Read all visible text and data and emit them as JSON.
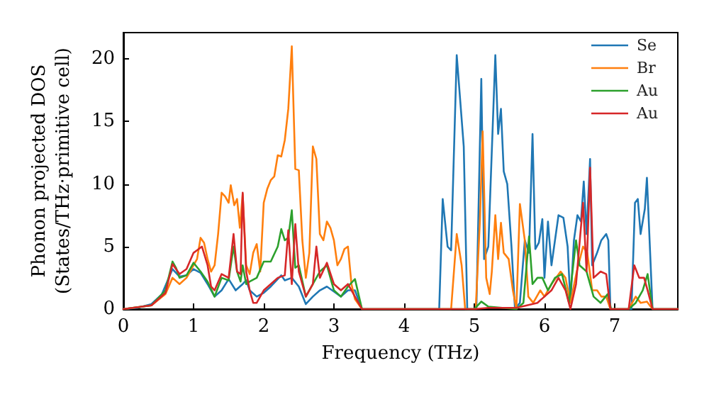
{
  "chart_data": {
    "type": "line",
    "xlabel": "Frequency (THz)",
    "ylabel": "Phonon projected DOS\n(States/THz·primitive cell)",
    "xlim": [
      0,
      7.9
    ],
    "ylim": [
      0,
      22.1
    ],
    "xticks": [
      0,
      1,
      2,
      3,
      4,
      5,
      6,
      7
    ],
    "yticks": [
      0,
      5,
      10,
      15,
      20
    ],
    "grid": false,
    "legend": "top right",
    "marker": "none",
    "line_style": "solid",
    "series": [
      {
        "name": "Se",
        "color": "#1f77b4",
        "x": [
          0,
          0.2,
          0.4,
          0.55,
          0.7,
          0.8,
          0.9,
          1.0,
          1.1,
          1.2,
          1.3,
          1.4,
          1.5,
          1.6,
          1.7,
          1.75,
          1.8,
          1.9,
          2.0,
          2.1,
          2.2,
          2.25,
          2.3,
          2.4,
          2.5,
          2.6,
          2.7,
          2.8,
          2.9,
          3.0,
          3.1,
          3.2,
          3.3,
          3.4,
          4.5,
          4.55,
          4.62,
          4.67,
          4.75,
          4.85,
          4.9,
          5.03,
          5.1,
          5.14,
          5.2,
          5.3,
          5.34,
          5.38,
          5.42,
          5.47,
          5.53,
          5.58,
          5.65,
          5.72,
          5.78,
          5.83,
          5.87,
          5.92,
          5.97,
          6.0,
          6.05,
          6.1,
          6.2,
          6.27,
          6.33,
          6.37,
          6.42,
          6.47,
          6.52,
          6.56,
          6.6,
          6.65,
          6.68,
          6.75,
          6.81,
          6.88,
          6.91,
          6.94,
          7.24,
          7.29,
          7.33,
          7.37,
          7.43,
          7.46,
          7.54,
          7.9
        ],
        "values": [
          0,
          0.1,
          0.4,
          1.2,
          3.2,
          2.6,
          2.7,
          3.2,
          2.9,
          2.0,
          1.0,
          1.5,
          2.4,
          1.5,
          2.0,
          2.3,
          1.5,
          1.0,
          1.3,
          1.8,
          2.4,
          2.7,
          2.3,
          2.5,
          1.8,
          0.4,
          1.0,
          1.5,
          1.8,
          1.4,
          1.0,
          1.5,
          1.5,
          0,
          0,
          8.8,
          5.0,
          4.7,
          20.3,
          13,
          0,
          0,
          18.4,
          4.0,
          5,
          20.3,
          14,
          16,
          11,
          10,
          5,
          0,
          0.5,
          5.5,
          4.5,
          14,
          4.8,
          5.3,
          7.2,
          2.5,
          7.0,
          3.5,
          7.5,
          7.3,
          5.0,
          0.5,
          5.5,
          7.5,
          7,
          10.2,
          6,
          12,
          3.5,
          4.5,
          5.5,
          6.0,
          5.5,
          0,
          0,
          8.5,
          8.8,
          6.0,
          8,
          10.5,
          0,
          0
        ]
      },
      {
        "name": "Br",
        "color": "#ff7f0e",
        "x": [
          0,
          0.4,
          0.6,
          0.7,
          0.8,
          0.9,
          1.0,
          1.05,
          1.1,
          1.15,
          1.2,
          1.25,
          1.3,
          1.35,
          1.4,
          1.45,
          1.5,
          1.53,
          1.58,
          1.62,
          1.66,
          1.7,
          1.75,
          1.8,
          1.85,
          1.9,
          1.95,
          2.0,
          2.05,
          2.1,
          2.15,
          2.2,
          2.25,
          2.3,
          2.35,
          2.4,
          2.45,
          2.5,
          2.55,
          2.6,
          2.65,
          2.7,
          2.75,
          2.8,
          2.85,
          2.9,
          2.95,
          3.0,
          3.05,
          3.1,
          3.15,
          3.2,
          3.25,
          3.3,
          3.4,
          4.67,
          4.75,
          4.82,
          4.87,
          5.02,
          5.08,
          5.12,
          5.17,
          5.22,
          5.25,
          5.3,
          5.34,
          5.38,
          5.42,
          5.49,
          5.55,
          5.6,
          5.65,
          5.72,
          5.77,
          5.84,
          5.94,
          6.0,
          6.1,
          6.23,
          6.3,
          6.37,
          6.46,
          6.55,
          6.61,
          6.68,
          6.75,
          6.81,
          6.88,
          6.94,
          7.2,
          7.3,
          7.37,
          7.46,
          7.54,
          7.9
        ],
        "values": [
          0,
          0.3,
          1.2,
          2.5,
          2.0,
          2.5,
          3.5,
          4.0,
          5.7,
          5.3,
          4.0,
          3.0,
          3.5,
          6.0,
          9.3,
          9.0,
          8.5,
          9.9,
          8.3,
          8.8,
          6.5,
          9.2,
          3.5,
          2.8,
          4.5,
          5.2,
          3.0,
          8.5,
          9.6,
          10.3,
          10.6,
          12.3,
          12.2,
          13.5,
          16,
          21.0,
          11.2,
          11.1,
          5.5,
          2.5,
          4.5,
          13.0,
          12.0,
          6.0,
          5.5,
          7.0,
          6.5,
          5.5,
          3.5,
          4.0,
          4.8,
          5.0,
          2.0,
          0.8,
          0,
          0,
          6.0,
          3.5,
          0,
          0,
          7,
          14.2,
          2.5,
          1.2,
          3,
          7.5,
          4,
          6.9,
          4.5,
          4,
          1.5,
          0,
          8.4,
          5.5,
          1.0,
          0.5,
          1.5,
          1.0,
          2.0,
          3.0,
          2.5,
          0.5,
          3.0,
          5.0,
          4.5,
          1.5,
          1.5,
          1.0,
          1.0,
          0,
          0,
          1.0,
          0.5,
          0.6,
          0,
          0
        ]
      },
      {
        "name": "Au",
        "color": "#2ca02c",
        "x": [
          0,
          0.4,
          0.6,
          0.7,
          0.75,
          0.8,
          0.9,
          1.0,
          1.1,
          1.2,
          1.3,
          1.4,
          1.5,
          1.57,
          1.62,
          1.67,
          1.7,
          1.75,
          1.8,
          1.9,
          2.0,
          2.1,
          2.2,
          2.25,
          2.3,
          2.35,
          2.4,
          2.45,
          2.5,
          2.6,
          2.7,
          2.8,
          2.9,
          3.0,
          3.1,
          3.2,
          3.3,
          3.4,
          5.0,
          5.1,
          5.2,
          5.4,
          5.6,
          5.7,
          5.78,
          5.83,
          5.9,
          5.97,
          6.05,
          6.15,
          6.25,
          6.35,
          6.45,
          6.5,
          6.6,
          6.7,
          6.8,
          6.9,
          6.95,
          7.2,
          7.3,
          7.4,
          7.47,
          7.54,
          7.9
        ],
        "values": [
          0,
          0.3,
          1.5,
          3.8,
          3.3,
          2.5,
          2.7,
          3.7,
          3.0,
          2.2,
          1.0,
          2.5,
          2.3,
          5.0,
          3.0,
          2.2,
          3.5,
          2.0,
          2.2,
          2.5,
          3.8,
          3.8,
          5.0,
          6.4,
          5.5,
          5.7,
          7.9,
          3.3,
          3.5,
          1.0,
          2.0,
          3.0,
          3.5,
          1.5,
          1.0,
          1.8,
          2.4,
          0,
          0,
          0.6,
          0.2,
          0.1,
          0,
          0.5,
          5.8,
          2.0,
          2.5,
          2.5,
          1.5,
          2.5,
          2.8,
          0.5,
          5.5,
          3.5,
          3.0,
          1.0,
          0.5,
          1.2,
          0,
          0,
          0.5,
          1.5,
          2.8,
          0,
          0
        ]
      },
      {
        "name": "Au",
        "color": "#d62728",
        "x": [
          0,
          0.4,
          0.6,
          0.7,
          0.8,
          0.9,
          1.0,
          1.05,
          1.12,
          1.2,
          1.25,
          1.3,
          1.4,
          1.5,
          1.57,
          1.62,
          1.67,
          1.7,
          1.75,
          1.8,
          1.85,
          1.9,
          2.0,
          2.1,
          2.2,
          2.3,
          2.35,
          2.4,
          2.45,
          2.5,
          2.6,
          2.7,
          2.75,
          2.8,
          2.9,
          3.0,
          3.1,
          3.2,
          3.3,
          3.4,
          5.0,
          5.2,
          5.6,
          5.9,
          6.0,
          6.1,
          6.2,
          6.3,
          6.37,
          6.45,
          6.55,
          6.6,
          6.65,
          6.7,
          6.8,
          6.88,
          6.94,
          7.2,
          7.28,
          7.35,
          7.42,
          7.47,
          7.54,
          7.9
        ],
        "values": [
          0,
          0.3,
          1.3,
          3.6,
          2.8,
          3.2,
          4.5,
          4.7,
          5.0,
          3.5,
          1.8,
          1.5,
          2.8,
          2.5,
          6.0,
          3.0,
          2.8,
          9.3,
          3.0,
          1.5,
          0.5,
          0.5,
          1.5,
          2.0,
          2.5,
          2.7,
          6.3,
          2.0,
          6.8,
          3.0,
          1.0,
          2.0,
          5.0,
          2.5,
          3.7,
          2.0,
          1.5,
          2.0,
          1.0,
          0,
          0,
          0.1,
          0.1,
          0.5,
          1.0,
          1.5,
          2.5,
          1.5,
          0,
          2.0,
          8.5,
          3.0,
          11.3,
          2.5,
          3.0,
          2.8,
          0,
          0,
          3.5,
          2.5,
          2.5,
          1.5,
          0,
          0
        ]
      }
    ]
  }
}
